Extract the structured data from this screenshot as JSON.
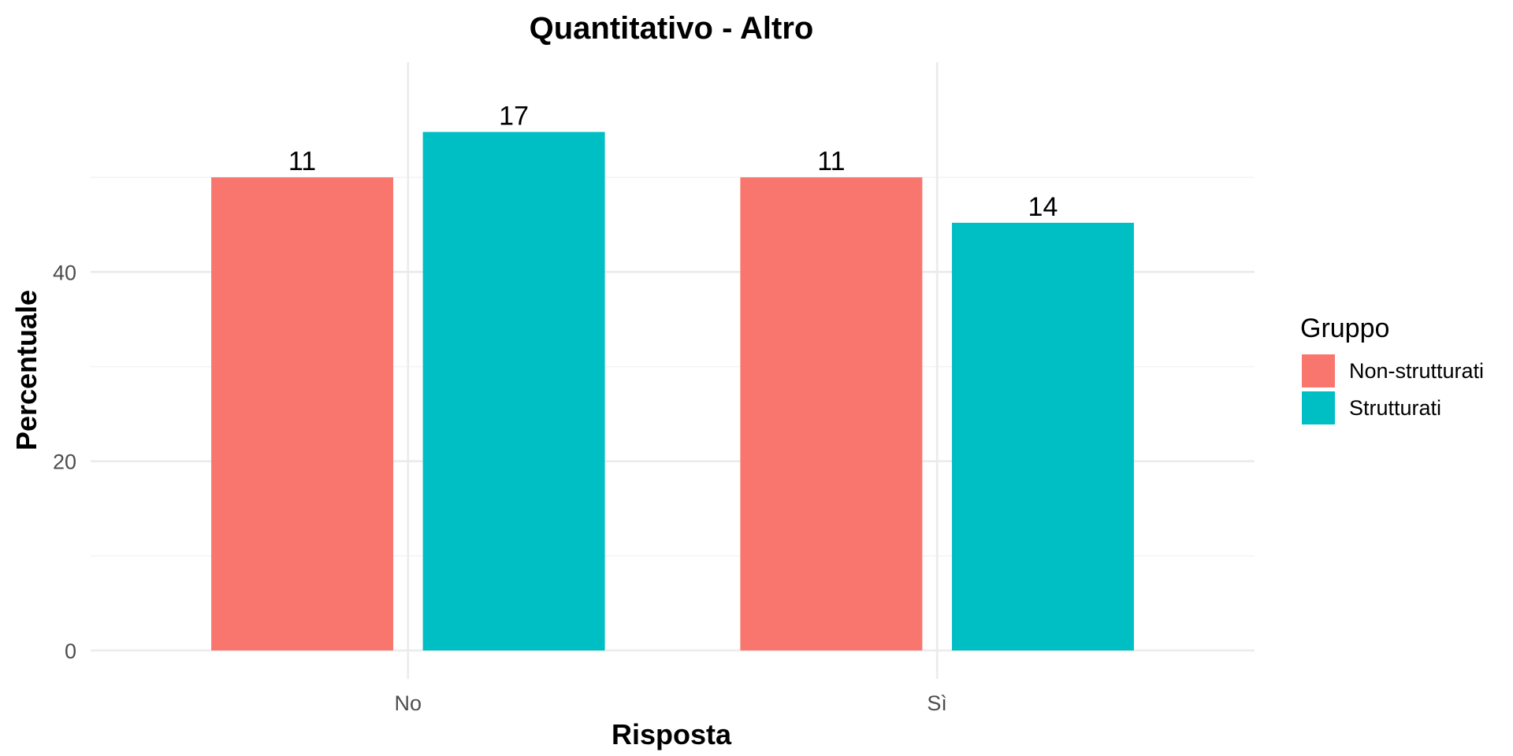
{
  "chart_data": {
    "type": "bar",
    "title": "Quantitativo - Altro",
    "xlabel": "Risposta",
    "ylabel": "Percentuale",
    "categories": [
      "No",
      "Sì"
    ],
    "ylim": [
      0,
      62.5
    ],
    "yticks": [
      0,
      20,
      40
    ],
    "grid": true,
    "legend": {
      "title": "Gruppo",
      "placement": "right"
    },
    "series": [
      {
        "name": "Non-strutturati",
        "color": "#F8766D",
        "values": [
          50.0,
          50.0
        ],
        "labels": [
          "11",
          "11"
        ]
      },
      {
        "name": "Strutturati",
        "color": "#00BFC4",
        "values": [
          54.8,
          45.2
        ],
        "labels": [
          "17",
          "14"
        ]
      }
    ]
  }
}
